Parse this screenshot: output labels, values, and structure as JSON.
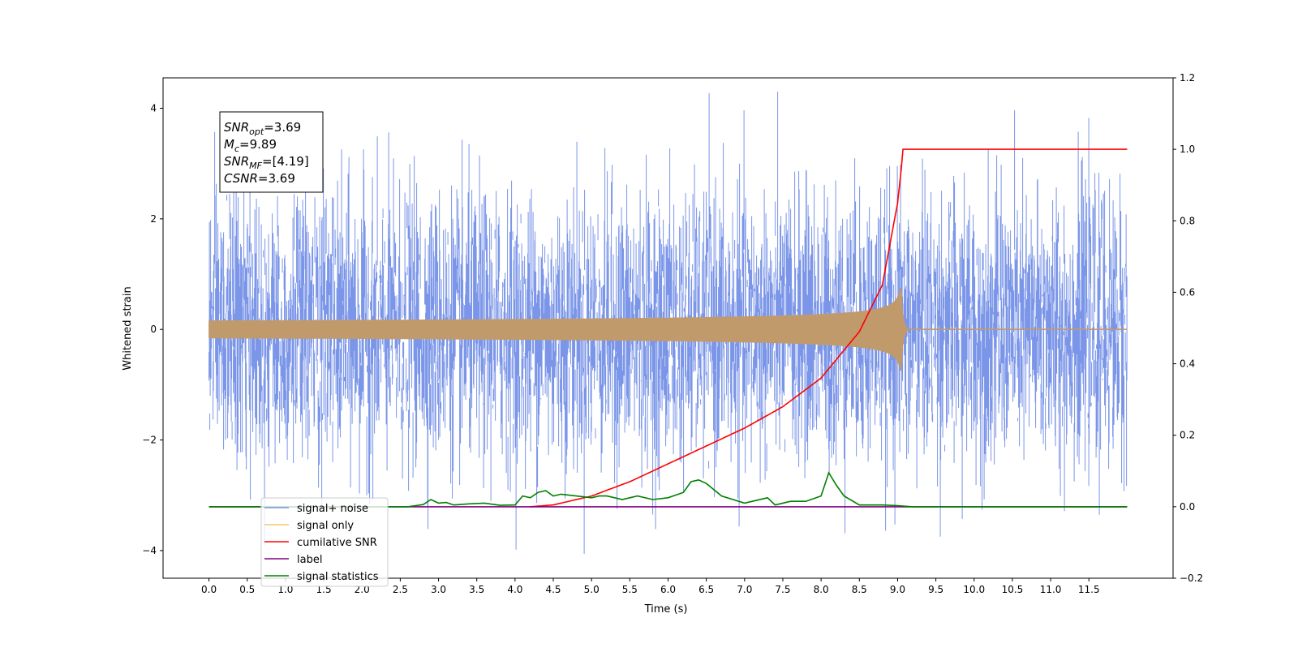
{
  "chart_data": {
    "type": "line",
    "xlabel": "Time (s)",
    "ylabel": "Whitened strain",
    "y2label": "",
    "xlim": [
      -0.6,
      12.6
    ],
    "ylim": [
      -4.5,
      4.55
    ],
    "y2lim": [
      -0.2,
      1.2
    ],
    "x_ticks": [
      "0.0",
      "0.5",
      "1.0",
      "1.5",
      "2.0",
      "2.5",
      "3.0",
      "3.5",
      "4.0",
      "4.5",
      "5.0",
      "5.5",
      "6.0",
      "6.5",
      "7.0",
      "7.5",
      "8.0",
      "8.5",
      "9.0",
      "9.5",
      "10.0",
      "10.5",
      "11.0",
      "11.5"
    ],
    "y_ticks": [
      "−4",
      "−2",
      "0",
      "2",
      "4"
    ],
    "y2_ticks": [
      "−0.2",
      "0.0",
      "0.2",
      "0.4",
      "0.6",
      "0.8",
      "1.0",
      "1.2"
    ],
    "grid": false,
    "legend_position": "lower-left",
    "info_box": {
      "lines": [
        {
          "base": "SNR",
          "sub": "opt",
          "value": "=3.69"
        },
        {
          "base": "M",
          "sub": "c",
          "value": "=9.89"
        },
        {
          "base": "SNR",
          "sub": "MF",
          "value": "=[4.19]"
        },
        {
          "base": "CSNR",
          "sub": "",
          "value": "=3.69"
        }
      ]
    },
    "series": [
      {
        "name": "signal+ noise",
        "color": "#7b96e8",
        "axis": "left",
        "noise_std": 1.2,
        "x_range": [
          0.0,
          12.0
        ]
      },
      {
        "name": "signal only",
        "color": "#f5c56a",
        "axis": "left",
        "merger_time": 9.05,
        "peak_amplitude": 0.75
      },
      {
        "name": "cumilative SNR",
        "color": "#ff0000",
        "axis": "right",
        "x": [
          4.2,
          4.5,
          5.0,
          5.5,
          6.0,
          6.5,
          7.0,
          7.5,
          8.0,
          8.5,
          8.8,
          9.0,
          9.05,
          9.07,
          12.0
        ],
        "y": [
          0.0,
          0.005,
          0.03,
          0.07,
          0.12,
          0.17,
          0.22,
          0.28,
          0.36,
          0.49,
          0.62,
          0.85,
          0.95,
          1.0,
          1.0
        ]
      },
      {
        "name": "label",
        "color": "#800080",
        "axis": "right",
        "x": [
          0.0,
          12.0
        ],
        "y": [
          0.0,
          0.0
        ]
      },
      {
        "name": "signal statistics",
        "color": "#008000",
        "axis": "right",
        "x": [
          0.0,
          2.6,
          2.7,
          2.8,
          2.9,
          3.0,
          3.1,
          3.2,
          3.4,
          3.6,
          3.8,
          4.0,
          4.1,
          4.2,
          4.3,
          4.4,
          4.5,
          4.6,
          4.8,
          5.0,
          5.1,
          5.2,
          5.4,
          5.6,
          5.8,
          6.0,
          6.2,
          6.3,
          6.4,
          6.5,
          6.7,
          7.0,
          7.3,
          7.4,
          7.6,
          7.8,
          8.0,
          8.1,
          8.2,
          8.3,
          8.5,
          8.8,
          9.0,
          9.2,
          12.0
        ],
        "y": [
          0.0,
          0.0,
          0.003,
          0.006,
          0.02,
          0.01,
          0.012,
          0.005,
          0.008,
          0.01,
          0.004,
          0.005,
          0.03,
          0.025,
          0.04,
          0.045,
          0.03,
          0.035,
          0.03,
          0.025,
          0.03,
          0.03,
          0.02,
          0.03,
          0.02,
          0.025,
          0.04,
          0.07,
          0.075,
          0.065,
          0.03,
          0.01,
          0.025,
          0.005,
          0.015,
          0.015,
          0.03,
          0.095,
          0.06,
          0.03,
          0.005,
          0.005,
          0.003,
          0.0,
          0.0
        ]
      }
    ]
  }
}
